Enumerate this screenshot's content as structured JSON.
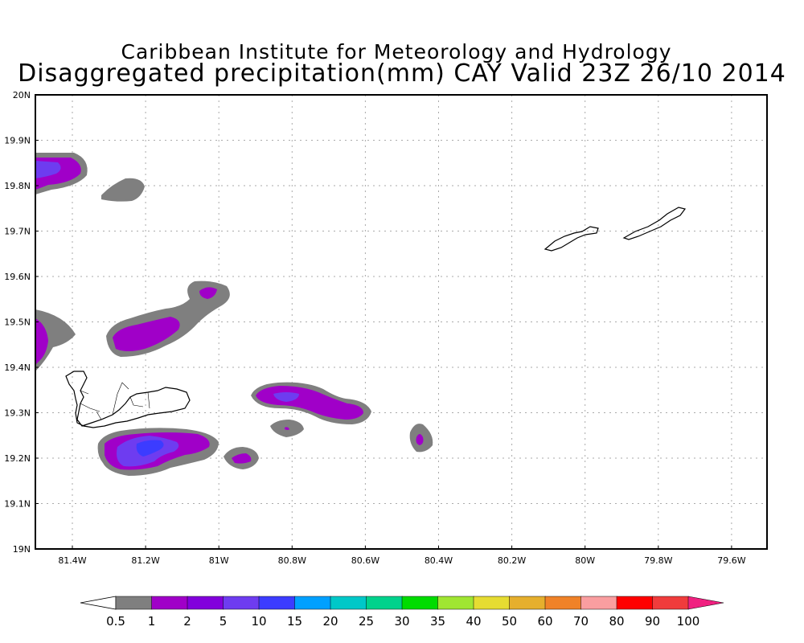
{
  "title": {
    "line1": "Caribbean Institute for Meteorology and Hydrology",
    "line2": "Disaggregated precipitation(mm) CAY Valid 23Z 26/10 2014"
  },
  "axes": {
    "y_labels": [
      "20N",
      "19.9N",
      "19.8N",
      "19.7N",
      "19.6N",
      "19.5N",
      "19.4N",
      "19.3N",
      "19.2N",
      "19.1N",
      "19N"
    ],
    "x_labels": [
      "81.4W",
      "81.2W",
      "81W",
      "80.8W",
      "80.6W",
      "80.4W",
      "80.2W",
      "80W",
      "79.8W",
      "79.6W"
    ]
  },
  "legend": {
    "labels": [
      "0.5",
      "1",
      "2",
      "5",
      "10",
      "15",
      "20",
      "25",
      "30",
      "35",
      "40",
      "50",
      "60",
      "70",
      "80",
      "90",
      "100"
    ],
    "colors": [
      "#7f7f7f",
      "#a000c8",
      "#8200dc",
      "#6e3cf0",
      "#3c3cff",
      "#00a0ff",
      "#00c8c8",
      "#00d28c",
      "#00dc00",
      "#a0e632",
      "#e6dc32",
      "#e6af2d",
      "#f08228",
      "#fa9ea0",
      "#ff0000",
      "#f03c3c",
      "#ff19ff"
    ],
    "end_left": "#ffffff",
    "end_right": "#f02080"
  },
  "colors": {
    "gray": "#7f7f7f",
    "purple": "#a000c8",
    "violet": "#8200dc",
    "blue": "#6e3cf0",
    "deepblue": "#3c3cff"
  }
}
